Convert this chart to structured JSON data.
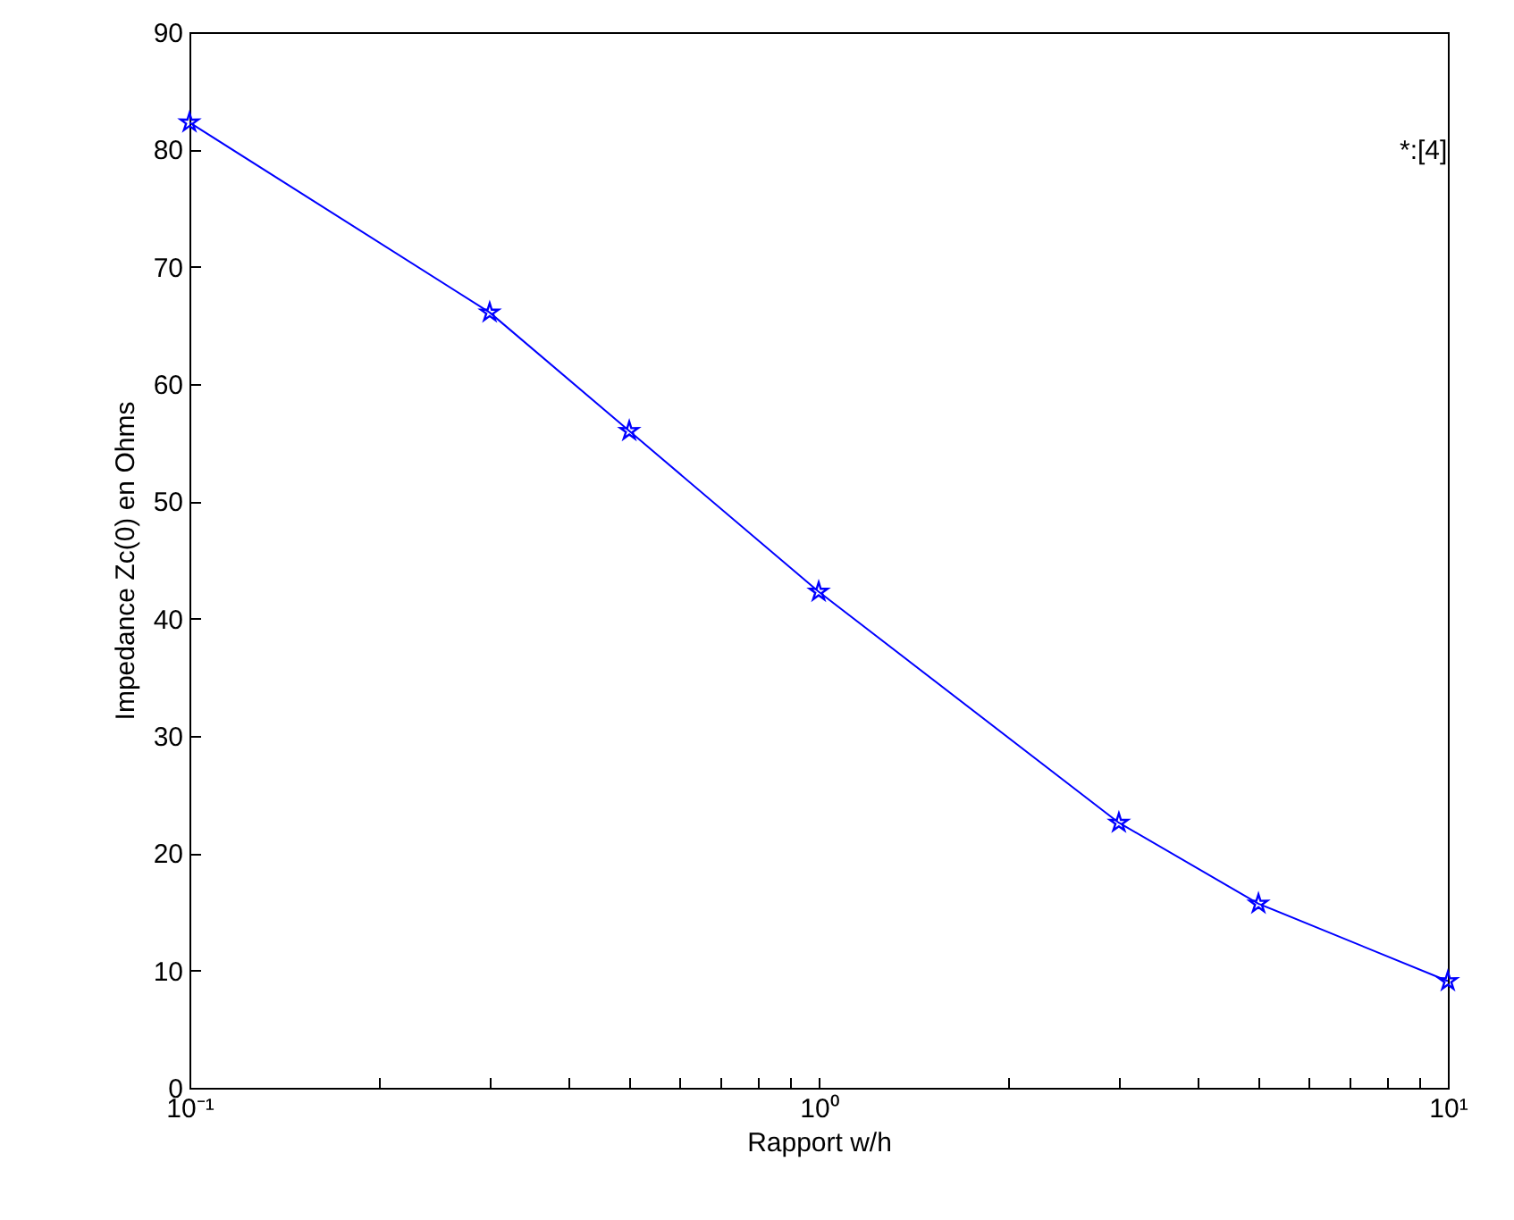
{
  "chart_data": {
    "type": "line",
    "xlabel": "Rapport w/h",
    "ylabel": "Impedance Zc(0) en Ohms",
    "x": [
      0.1,
      0.3,
      0.5,
      1,
      3,
      5,
      10
    ],
    "series": [
      {
        "color": "#0000ff",
        "values": [
          82.3,
          66.1,
          56.0,
          42.3,
          22.6,
          15.7,
          9.1
        ]
      }
    ],
    "marker": "star",
    "line_style": "solid",
    "grid": false,
    "log": "x",
    "xlim": [
      0.1,
      10
    ],
    "xticks": [
      {
        "value": 0.1,
        "label": "10⁻¹"
      },
      {
        "value": 0.2,
        "label": null
      },
      {
        "value": 0.3,
        "label": null
      },
      {
        "value": 0.4,
        "label": null
      },
      {
        "value": 0.5,
        "label": null
      },
      {
        "value": 0.6,
        "label": null
      },
      {
        "value": 0.7,
        "label": null
      },
      {
        "value": 0.8,
        "label": null
      },
      {
        "value": 0.9,
        "label": null
      },
      {
        "value": 1,
        "label": "10⁰"
      },
      {
        "value": 2,
        "label": null
      },
      {
        "value": 3,
        "label": null
      },
      {
        "value": 4,
        "label": null
      },
      {
        "value": 5,
        "label": null
      },
      {
        "value": 6,
        "label": null
      },
      {
        "value": 7,
        "label": null
      },
      {
        "value": 8,
        "label": null
      },
      {
        "value": 9,
        "label": null
      },
      {
        "value": 10,
        "label": "10¹"
      }
    ],
    "ylim": [
      0,
      90
    ],
    "yticks": [
      0,
      10,
      20,
      30,
      40,
      50,
      60,
      70,
      80,
      90
    ],
    "annotations": [
      "*:[4]"
    ]
  }
}
